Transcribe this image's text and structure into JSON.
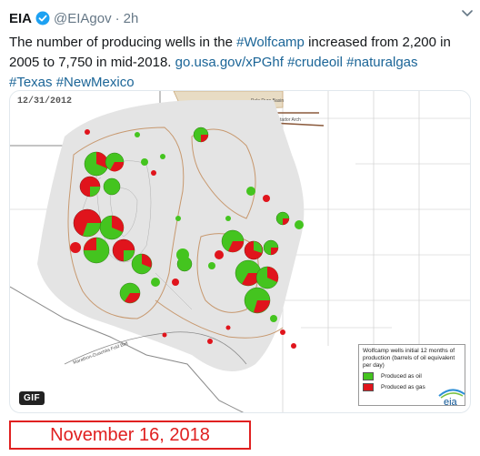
{
  "tweet": {
    "author": "EIA",
    "handle": "@EIAgov",
    "separator": "·",
    "time": "2h",
    "text_prefix": "The number of producing wells in the ",
    "hashtag_wolfcamp": "#Wolfcamp",
    "text_mid": " increased from 2,200 in 2005 to 7,750 in mid-2018. ",
    "url": "go.usa.gov/xPGhf",
    "hashtag_crudeoil": "#crudeoil",
    "hashtag_naturalgas": "#naturalgas",
    "hashtag_texas": "#Texas",
    "hashtag_newmexico": "#NewMexico"
  },
  "media": {
    "date_label": "12/31/2012",
    "gif_label": "GIF",
    "labels": {
      "palo_duro": "Palo Duro Basin",
      "matador": "Matador Arch",
      "marathon": "Marathon-Ouachita Fold Belt"
    },
    "legend": {
      "title": "Wolfcamp wells initial 12 months of production (barrels of oil equivalent per day)",
      "oil_label": "Produced as oil",
      "gas_label": "Produced as gas",
      "oil_color": "#44c41f",
      "gas_color": "#e0141c"
    },
    "logo_text": "eia"
  },
  "footer": {
    "date": "November 16, 2018"
  },
  "colors": {
    "link": "#1b6597",
    "verified": "#1da1f2",
    "date_box": "#e02020"
  },
  "icons": [
    "verified-badge-icon",
    "chevron-down-icon",
    "eia-logo"
  ]
}
